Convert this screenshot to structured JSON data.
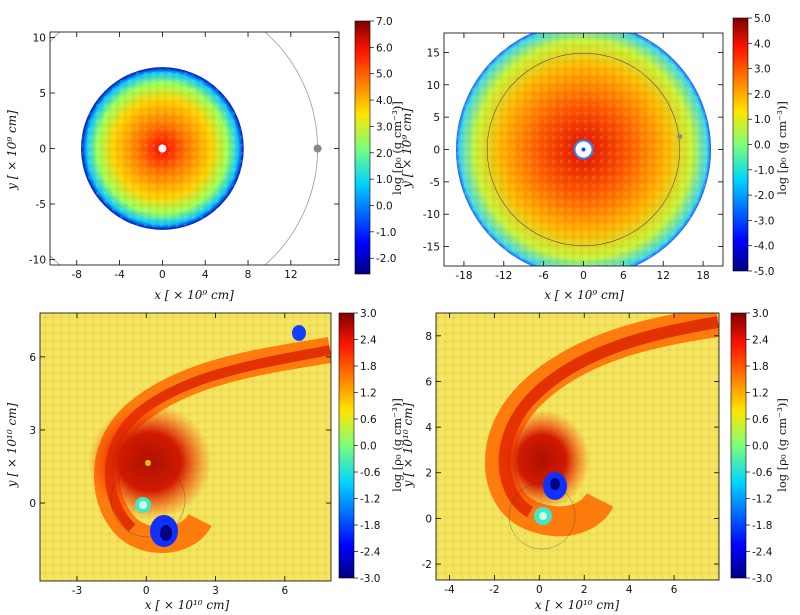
{
  "chart_data": [
    {
      "type": "heatmap",
      "panel": "top-left",
      "xlabel": "x [ × 10⁹ cm]",
      "ylabel": "y [ × 10⁹ cm]",
      "xlim": [
        -10.5,
        16.5
      ],
      "ylim": [
        -10.5,
        10.5
      ],
      "xticks": [
        -8,
        -4,
        0,
        4,
        8,
        12
      ],
      "yticks": [
        -10,
        -5,
        0,
        5,
        10
      ],
      "colorbar": {
        "label": "log [ρ₀ (g cm⁻³)]",
        "range": [
          -2.6,
          7.0
        ],
        "ticks": [
          "7.0",
          "6.0",
          "5.0",
          "4.0",
          "3.0",
          "2.0",
          "1.0",
          "0.0",
          "-1.0",
          "-2.0"
        ]
      },
      "disk_radius": 7.6,
      "companion": {
        "x": 14.5,
        "y": 0
      },
      "orbit_radius": 14.5
    },
    {
      "type": "heatmap",
      "panel": "top-right",
      "xlabel": "x [ × 10⁹ cm]",
      "ylabel": "y [ × 10⁹ cm]",
      "xlim": [
        -21,
        21
      ],
      "ylim": [
        -18,
        18
      ],
      "xticks": [
        -18,
        -12,
        -6,
        0,
        6,
        12,
        18
      ],
      "yticks": [
        -15,
        -10,
        -5,
        0,
        5,
        10,
        15
      ],
      "colorbar": {
        "label": "log [ρ₀ (g cm⁻³)]",
        "range": [
          -5.0,
          5.0
        ],
        "ticks": [
          "5.0",
          "4.0",
          "3.0",
          "2.0",
          "1.0",
          "0.0",
          "-1.0",
          "-2.0",
          "-3.0",
          "-4.0",
          "-5.0"
        ]
      },
      "disk_radius": 19.2,
      "companion": {
        "x": 14.5,
        "y": 2.0
      },
      "orbit_radius": 14.5
    },
    {
      "type": "heatmap",
      "panel": "bottom-left",
      "xlabel": "x [ × 10¹⁰ cm]",
      "ylabel": "y [ × 10¹⁰ cm]",
      "xlim": [
        -4.6,
        8.0
      ],
      "ylim": [
        -3.2,
        7.8
      ],
      "xticks": [
        -3,
        0,
        3,
        6
      ],
      "yticks": [
        0,
        3,
        6
      ],
      "colorbar": {
        "label": "log [ρ₀ (g cm⁻³)]",
        "range": [
          -3.0,
          3.0
        ],
        "ticks": [
          "3.0",
          "2.4",
          "1.8",
          "1.2",
          "0.6",
          "0.0",
          "-0.6",
          "-1.2",
          "-1.8",
          "-2.4",
          "-3.0"
        ]
      }
    },
    {
      "type": "heatmap",
      "panel": "bottom-right",
      "xlabel": "x [ × 10¹⁰ cm]",
      "ylabel": "y [ × 10¹⁰ cm]",
      "xlim": [
        -4.6,
        8.0
      ],
      "ylim": [
        -2.7,
        9.0
      ],
      "xticks": [
        -4,
        -2,
        0,
        2,
        4,
        6
      ],
      "yticks": [
        -2,
        0,
        2,
        4,
        6,
        8
      ],
      "colorbar": {
        "label": "log [ρ₀ (g cm⁻³)]",
        "range": [
          -3.0,
          3.0
        ],
        "ticks": [
          "3.0",
          "2.4",
          "1.8",
          "1.2",
          "0.6",
          "0.0",
          "-0.6",
          "-1.2",
          "-1.8",
          "-2.4",
          "-3.0"
        ]
      }
    }
  ]
}
